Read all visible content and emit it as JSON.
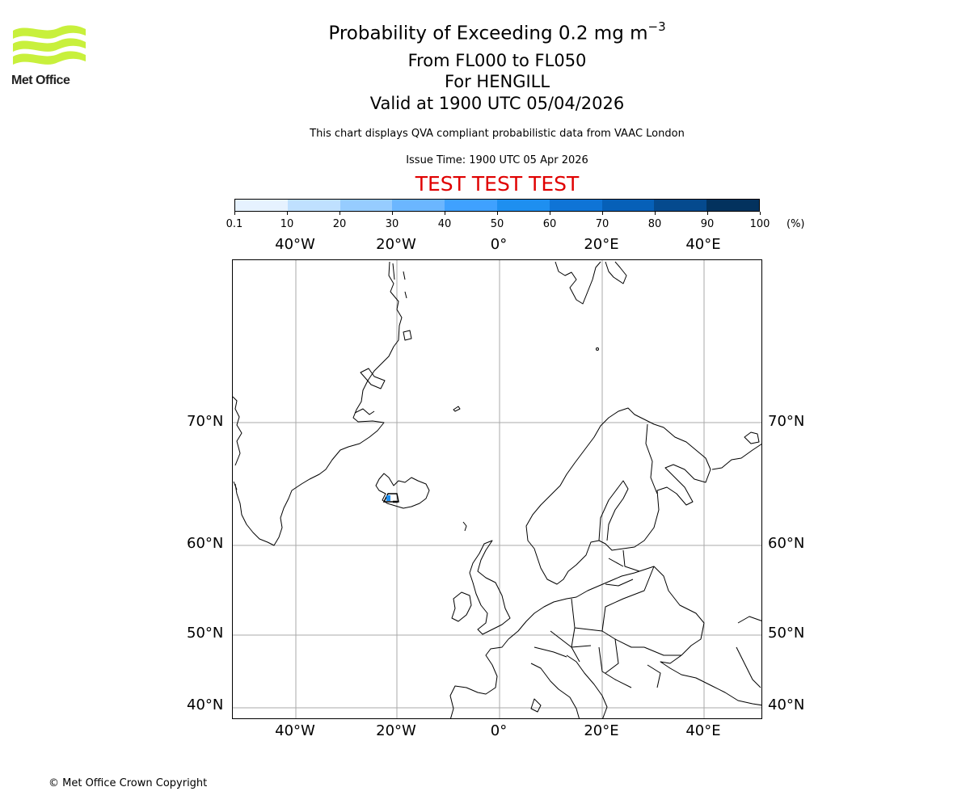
{
  "logo": {
    "text": "Met Office",
    "brand_color": "#c8f03c",
    "icon": "met-office-waves-logo"
  },
  "title": {
    "main": "Probability of Exceeding 0.2 mg m",
    "main_superscript": "−3",
    "flight_levels": "From FL000 to FL050",
    "volcano": "For HENGILL",
    "valid": "Valid at 1900 UTC 05/04/2026"
  },
  "subtitle": "This chart displays QVA compliant probabilistic data from VAAC London",
  "issue_time": "Issue Time: 1900 UTC 05 Apr 2026",
  "test_banner": {
    "text": "TEST TEST TEST",
    "color": "#e00000"
  },
  "colorbar": {
    "ticks": [
      "0.1",
      "10",
      "20",
      "30",
      "40",
      "50",
      "60",
      "70",
      "80",
      "90",
      "100"
    ],
    "unit": "(%)",
    "colors": [
      "#e6f2ff",
      "#bfe0ff",
      "#96ccff",
      "#6bb6ff",
      "#3fa1ff",
      "#1e8ff0",
      "#0f74d6",
      "#0660b8",
      "#054a8e",
      "#03325e"
    ]
  },
  "map": {
    "lon_labels": [
      "40°W",
      "20°W",
      "0°",
      "20°E",
      "40°E"
    ],
    "lat_labels": [
      "70°N",
      "60°N",
      "50°N",
      "40°N"
    ],
    "gridline_color": "#aaaaaa",
    "source_marker": {
      "name": "HENGILL",
      "region": "SW Iceland",
      "fill_color": "#1e8ff0"
    }
  },
  "footer": {
    "copyright": "© Met Office Crown Copyright"
  }
}
